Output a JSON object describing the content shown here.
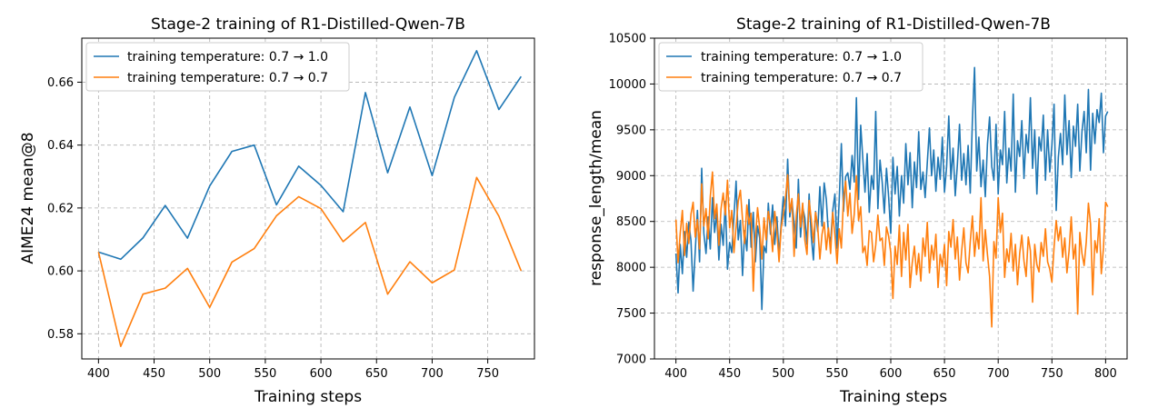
{
  "chart_data": [
    {
      "type": "line",
      "title": "Stage-2 training of R1-Distilled-Qwen-7B",
      "xlabel": "Training steps",
      "ylabel": "AIME24 mean@8",
      "xlim": [
        385,
        792
      ],
      "ylim": [
        0.572,
        0.674
      ],
      "xticks": [
        400,
        450,
        500,
        550,
        600,
        650,
        700,
        750
      ],
      "yticks": [
        0.58,
        0.6,
        0.62,
        0.64,
        0.66
      ],
      "ytick_labels": [
        "0.58",
        "0.60",
        "0.62",
        "0.64",
        "0.66"
      ],
      "grid": true,
      "legend": "top-left",
      "series": [
        {
          "name": "training temperature: 0.7 → 1.0",
          "color": "#1f77b4",
          "x": [
            400,
            420,
            440,
            460,
            480,
            500,
            520,
            540,
            560,
            580,
            600,
            620,
            640,
            660,
            680,
            700,
            720,
            740,
            760,
            780
          ],
          "y": [
            0.606,
            0.6037,
            0.6105,
            0.6208,
            0.6104,
            0.627,
            0.638,
            0.64,
            0.621,
            0.6333,
            0.6272,
            0.6188,
            0.6567,
            0.6312,
            0.6521,
            0.6303,
            0.6552,
            0.67,
            0.6513,
            0.6618
          ]
        },
        {
          "name": "training temperature: 0.7 → 0.7",
          "color": "#ff7f0e",
          "x": [
            400,
            420,
            440,
            460,
            480,
            500,
            520,
            540,
            560,
            580,
            600,
            620,
            640,
            660,
            680,
            700,
            720,
            740,
            760,
            780
          ],
          "y": [
            0.606,
            0.576,
            0.5926,
            0.5945,
            0.6008,
            0.5884,
            0.6028,
            0.6071,
            0.6175,
            0.6236,
            0.6198,
            0.6093,
            0.6154,
            0.5926,
            0.6029,
            0.5962,
            0.6003,
            0.6297,
            0.6174,
            0.6
          ]
        }
      ]
    },
    {
      "type": "line",
      "title": "Stage-2 training of R1-Distilled-Qwen-7B",
      "xlabel": "Training steps",
      "ylabel": "response_length/mean",
      "xlim": [
        380,
        820
      ],
      "ylim": [
        7000,
        10500
      ],
      "xticks": [
        400,
        450,
        500,
        550,
        600,
        650,
        700,
        750,
        800
      ],
      "yticks": [
        7000,
        7500,
        8000,
        8500,
        9000,
        9500,
        10000,
        10500
      ],
      "grid": true,
      "legend": "top-left",
      "series": [
        {
          "name": "training temperature: 0.7 → 1.0",
          "color": "#1f77b4",
          "x_start": 400,
          "x_step": 2,
          "y": [
            8150,
            7720,
            8250,
            7930,
            8390,
            8110,
            8490,
            8290,
            7740,
            8180,
            8620,
            8060,
            9080,
            8370,
            8150,
            8550,
            8200,
            8760,
            8380,
            8600,
            8080,
            8470,
            8240,
            8720,
            7980,
            8270,
            8160,
            8550,
            8940,
            8300,
            8510,
            7910,
            8400,
            8180,
            8740,
            8220,
            8600,
            8060,
            8450,
            8320,
            7540,
            8230,
            8160,
            8700,
            8360,
            8680,
            8250,
            8550,
            8130,
            8480,
            8770,
            8450,
            9180,
            8550,
            8730,
            8480,
            8210,
            8960,
            8330,
            8650,
            8540,
            8250,
            8800,
            8340,
            8080,
            8610,
            8390,
            8880,
            8450,
            8920,
            8740,
            8360,
            8280,
            8620,
            8800,
            8210,
            8730,
            9350,
            8610,
            8990,
            9030,
            8850,
            9220,
            8930,
            9850,
            8740,
            9550,
            9180,
            8820,
            9240,
            8600,
            9000,
            8850,
            9700,
            8640,
            9170,
            8930,
            8590,
            9080,
            8770,
            8370,
            9200,
            8800,
            9100,
            8560,
            9000,
            8700,
            9350,
            8900,
            9250,
            8650,
            9150,
            8870,
            9480,
            8850,
            9040,
            8760,
            9140,
            9520,
            9000,
            9280,
            8830,
            9200,
            8960,
            9420,
            8820,
            9100,
            9650,
            8960,
            9300,
            8780,
            9120,
            9560,
            8950,
            9240,
            8900,
            9330,
            8810,
            9610,
            10180,
            9050,
            9420,
            8880,
            9170,
            8770,
            9340,
            9640,
            9100,
            8950,
            9560,
            8800,
            9280,
            9120,
            9700,
            8920,
            9300,
            9050,
            9890,
            8820,
            9380,
            9210,
            9600,
            8970,
            9450,
            9250,
            9850,
            9080,
            9500,
            8800,
            9420,
            9270,
            9660,
            8950,
            9500,
            9040,
            9330,
            9780,
            8620,
            9200,
            9460,
            9120,
            9880,
            9230,
            9600,
            8980,
            9540,
            9320,
            9780,
            9050,
            9480,
            9700,
            9250,
            9940,
            9060,
            9680,
            9350,
            9720,
            9580,
            9900,
            9250,
            9650,
            9700
          ]
        },
        {
          "name": "training temperature: 0.7 → 0.7",
          "color": "#ff7f0e",
          "x_start": 400,
          "x_step": 2,
          "y": [
            8520,
            8050,
            8370,
            8620,
            8130,
            8480,
            8260,
            8580,
            8710,
            8330,
            8520,
            8200,
            8910,
            8450,
            8640,
            8310,
            8770,
            9040,
            8530,
            8690,
            8240,
            8640,
            8810,
            8570,
            8950,
            8430,
            8620,
            8160,
            8440,
            8720,
            8840,
            8520,
            8260,
            8680,
            8470,
            8590,
            7740,
            8310,
            8650,
            8420,
            8090,
            8540,
            8300,
            8610,
            8470,
            8170,
            8610,
            8390,
            8060,
            8430,
            8580,
            8760,
            9010,
            8600,
            8750,
            8120,
            8560,
            8800,
            8440,
            8700,
            8300,
            8140,
            8730,
            8520,
            8270,
            8600,
            8440,
            8090,
            8360,
            8490,
            8190,
            8430,
            8150,
            8600,
            8350,
            8040,
            8420,
            8210,
            8750,
            8940,
            8560,
            8810,
            8370,
            8580,
            9000,
            8510,
            8660,
            8160,
            8230,
            8020,
            8400,
            8380,
            8060,
            8240,
            8570,
            8290,
            8320,
            8020,
            8440,
            8340,
            8160,
            7660,
            8230,
            8030,
            8460,
            7900,
            8380,
            8080,
            8470,
            7780,
            8050,
            8230,
            7920,
            8150,
            7850,
            8320,
            8120,
            8490,
            7940,
            8240,
            8080,
            8360,
            7780,
            8140,
            8010,
            8250,
            7800,
            8390,
            8220,
            8520,
            8090,
            8330,
            7860,
            8180,
            8430,
            8050,
            7940,
            8280,
            8560,
            8120,
            8380,
            8200,
            8760,
            8070,
            8410,
            8140,
            7900,
            7350,
            8280,
            8100,
            8760,
            8380,
            8590,
            7890,
            8200,
            8060,
            8370,
            7960,
            8250,
            7810,
            8150,
            8350,
            8070,
            7900,
            8330,
            8180,
            7620,
            8250,
            8030,
            7950,
            8270,
            8120,
            8420,
            8060,
            7980,
            7840,
            8220,
            8510,
            8290,
            8440,
            8110,
            8320,
            7940,
            8180,
            8550,
            8090,
            8250,
            7490,
            8380,
            8150,
            8020,
            8280,
            8700,
            8470,
            7700,
            8290,
            8160,
            8530,
            7930,
            8210,
            8710,
            8660
          ]
        }
      ]
    }
  ]
}
